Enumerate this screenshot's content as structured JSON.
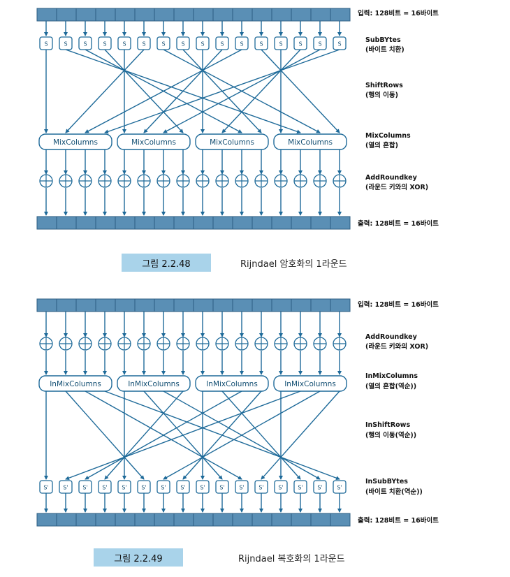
{
  "figure1": {
    "input_label": "입력: 128비트 = 16바이트",
    "output_label": "출력: 128비트 = 16바이트",
    "cell_symbol": "S",
    "mix_label": "MixColumns",
    "steps": [
      {
        "name": "SubBYtes",
        "desc": "(바이트 치환)"
      },
      {
        "name": "ShiftRows",
        "desc": "(행의 이동)"
      },
      {
        "name": "MixColumns",
        "desc": "(열의 혼합)"
      },
      {
        "name": "AddRoundkey",
        "desc": "(라운드 키와의 XOR)"
      }
    ],
    "caption_number": "그림 2.2.48",
    "caption_text": "Rijndael 암호화의 1라운드"
  },
  "figure2": {
    "input_label": "입력: 128비트 = 16바이트",
    "output_label": "출력: 128비트 = 16바이트",
    "cell_symbol": "S'",
    "mix_label": "InMixColumns",
    "steps": [
      {
        "name": "AddRoundkey",
        "desc": "(라운드 키와의 XOR)"
      },
      {
        "name": "InMixColumns",
        "desc": "(열의 혼합(역순))"
      },
      {
        "name": "InShiftRows",
        "desc": "(행의 이동(역순))"
      },
      {
        "name": "InSubBYtes",
        "desc": "(바이트 치환(역순))"
      }
    ],
    "caption_number": "그림 2.2.49",
    "caption_text": "Rijndael 복호화의 1라운드"
  },
  "colors": {
    "line": "#1e6a99",
    "bar_fill": "#5a8fb5",
    "bar_stroke": "#2c5d82",
    "badge": "#a9d3ea"
  }
}
